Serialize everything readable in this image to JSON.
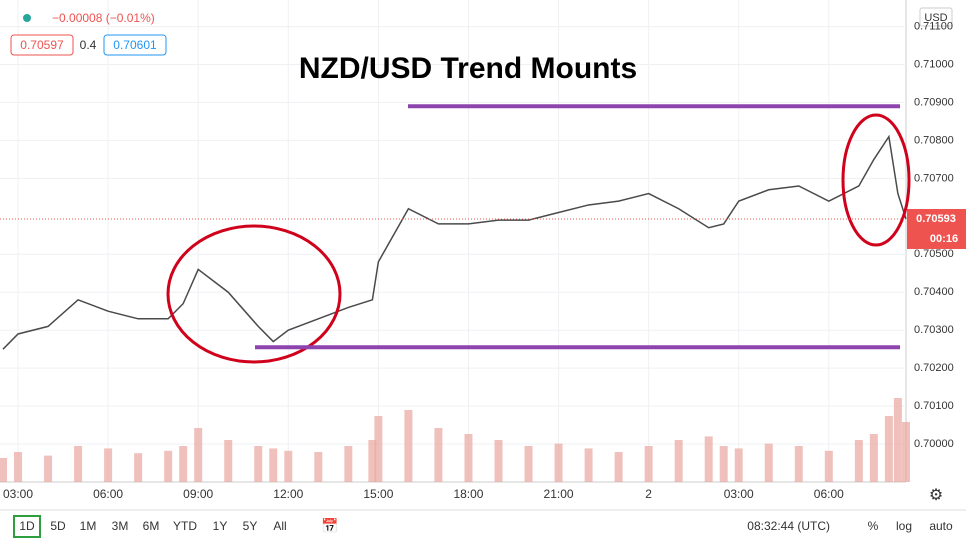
{
  "chart_data": {
    "type": "line",
    "title": "NZD/USD Trend Mounts",
    "header": {
      "change": "−0.00008 (−0.01%)",
      "bid": "0.70597",
      "spread": "0.4",
      "ask": "0.70601",
      "currency": "USD"
    },
    "x": [
      2.5,
      3,
      4,
      5,
      6,
      7,
      8,
      8.5,
      9,
      10,
      11,
      11.5,
      12,
      13,
      14,
      14.8,
      15,
      16,
      17,
      18,
      19,
      20,
      21,
      22,
      23,
      24,
      25,
      26,
      26.5,
      27,
      28,
      29,
      30,
      31,
      31.5,
      32,
      32.3,
      32.57
    ],
    "series": [
      {
        "name": "NZD/USD",
        "color": "#4a4a4a",
        "values": [
          0.7025,
          0.7029,
          0.7031,
          0.7038,
          0.7035,
          0.7033,
          0.7033,
          0.7037,
          0.7046,
          0.704,
          0.7031,
          0.7027,
          0.703,
          0.7033,
          0.7036,
          0.7038,
          0.7048,
          0.7062,
          0.7058,
          0.7058,
          0.7059,
          0.7059,
          0.7061,
          0.7063,
          0.7064,
          0.7066,
          0.7062,
          0.7057,
          0.7058,
          0.7064,
          0.7067,
          0.7068,
          0.7064,
          0.7068,
          0.7075,
          0.7081,
          0.7066,
          0.70593
        ]
      },
      {
        "name": "Volume",
        "color": "#e9a6a0",
        "axis": "y2",
        "values": [
          20,
          25,
          22,
          30,
          28,
          24,
          26,
          30,
          45,
          35,
          30,
          28,
          26,
          25,
          30,
          35,
          55,
          60,
          45,
          40,
          35,
          30,
          32,
          28,
          25,
          30,
          35,
          38,
          30,
          28,
          32,
          30,
          26,
          35,
          40,
          55,
          70,
          50
        ]
      }
    ],
    "last_price": 0.70593,
    "countdown": "00:16",
    "levels": [
      0.7089,
      0.70255
    ],
    "level_color": "#8e44ad",
    "xlim": [
      2.4,
      32.57
    ],
    "xticks": [
      {
        "value": 3,
        "label": "03:00"
      },
      {
        "value": 6,
        "label": "06:00"
      },
      {
        "value": 9,
        "label": "09:00"
      },
      {
        "value": 12,
        "label": "12:00"
      },
      {
        "value": 15,
        "label": "15:00"
      },
      {
        "value": 18,
        "label": "18:00"
      },
      {
        "value": 21,
        "label": "21:00"
      },
      {
        "value": 24,
        "label": "2"
      },
      {
        "value": 27,
        "label": "03:00"
      },
      {
        "value": 30,
        "label": "06:00"
      }
    ],
    "ylim": [
      0.699,
      0.7117
    ],
    "yticks": [
      {
        "value": 0.7,
        "label": "0.70000"
      },
      {
        "value": 0.701,
        "label": "0.70100"
      },
      {
        "value": 0.702,
        "label": "0.70200"
      },
      {
        "value": 0.703,
        "label": "0.70300"
      },
      {
        "value": 0.704,
        "label": "0.70400"
      },
      {
        "value": 0.705,
        "label": "0.70500"
      },
      {
        "value": 0.707,
        "label": "0.70700"
      },
      {
        "value": 0.708,
        "label": "0.70800"
      },
      {
        "value": 0.709,
        "label": "0.70900"
      },
      {
        "value": 0.71,
        "label": "0.71000"
      },
      {
        "value": 0.711,
        "label": "0.71100"
      }
    ],
    "y2lim": [
      0,
      100
    ],
    "grid": true,
    "toolbar": {
      "ranges": [
        "1D",
        "5D",
        "1M",
        "3M",
        "6M",
        "YTD",
        "1Y",
        "5Y",
        "All"
      ],
      "clock": "08:32:44 (UTC)",
      "options": [
        "%",
        "log",
        "auto"
      ]
    }
  }
}
